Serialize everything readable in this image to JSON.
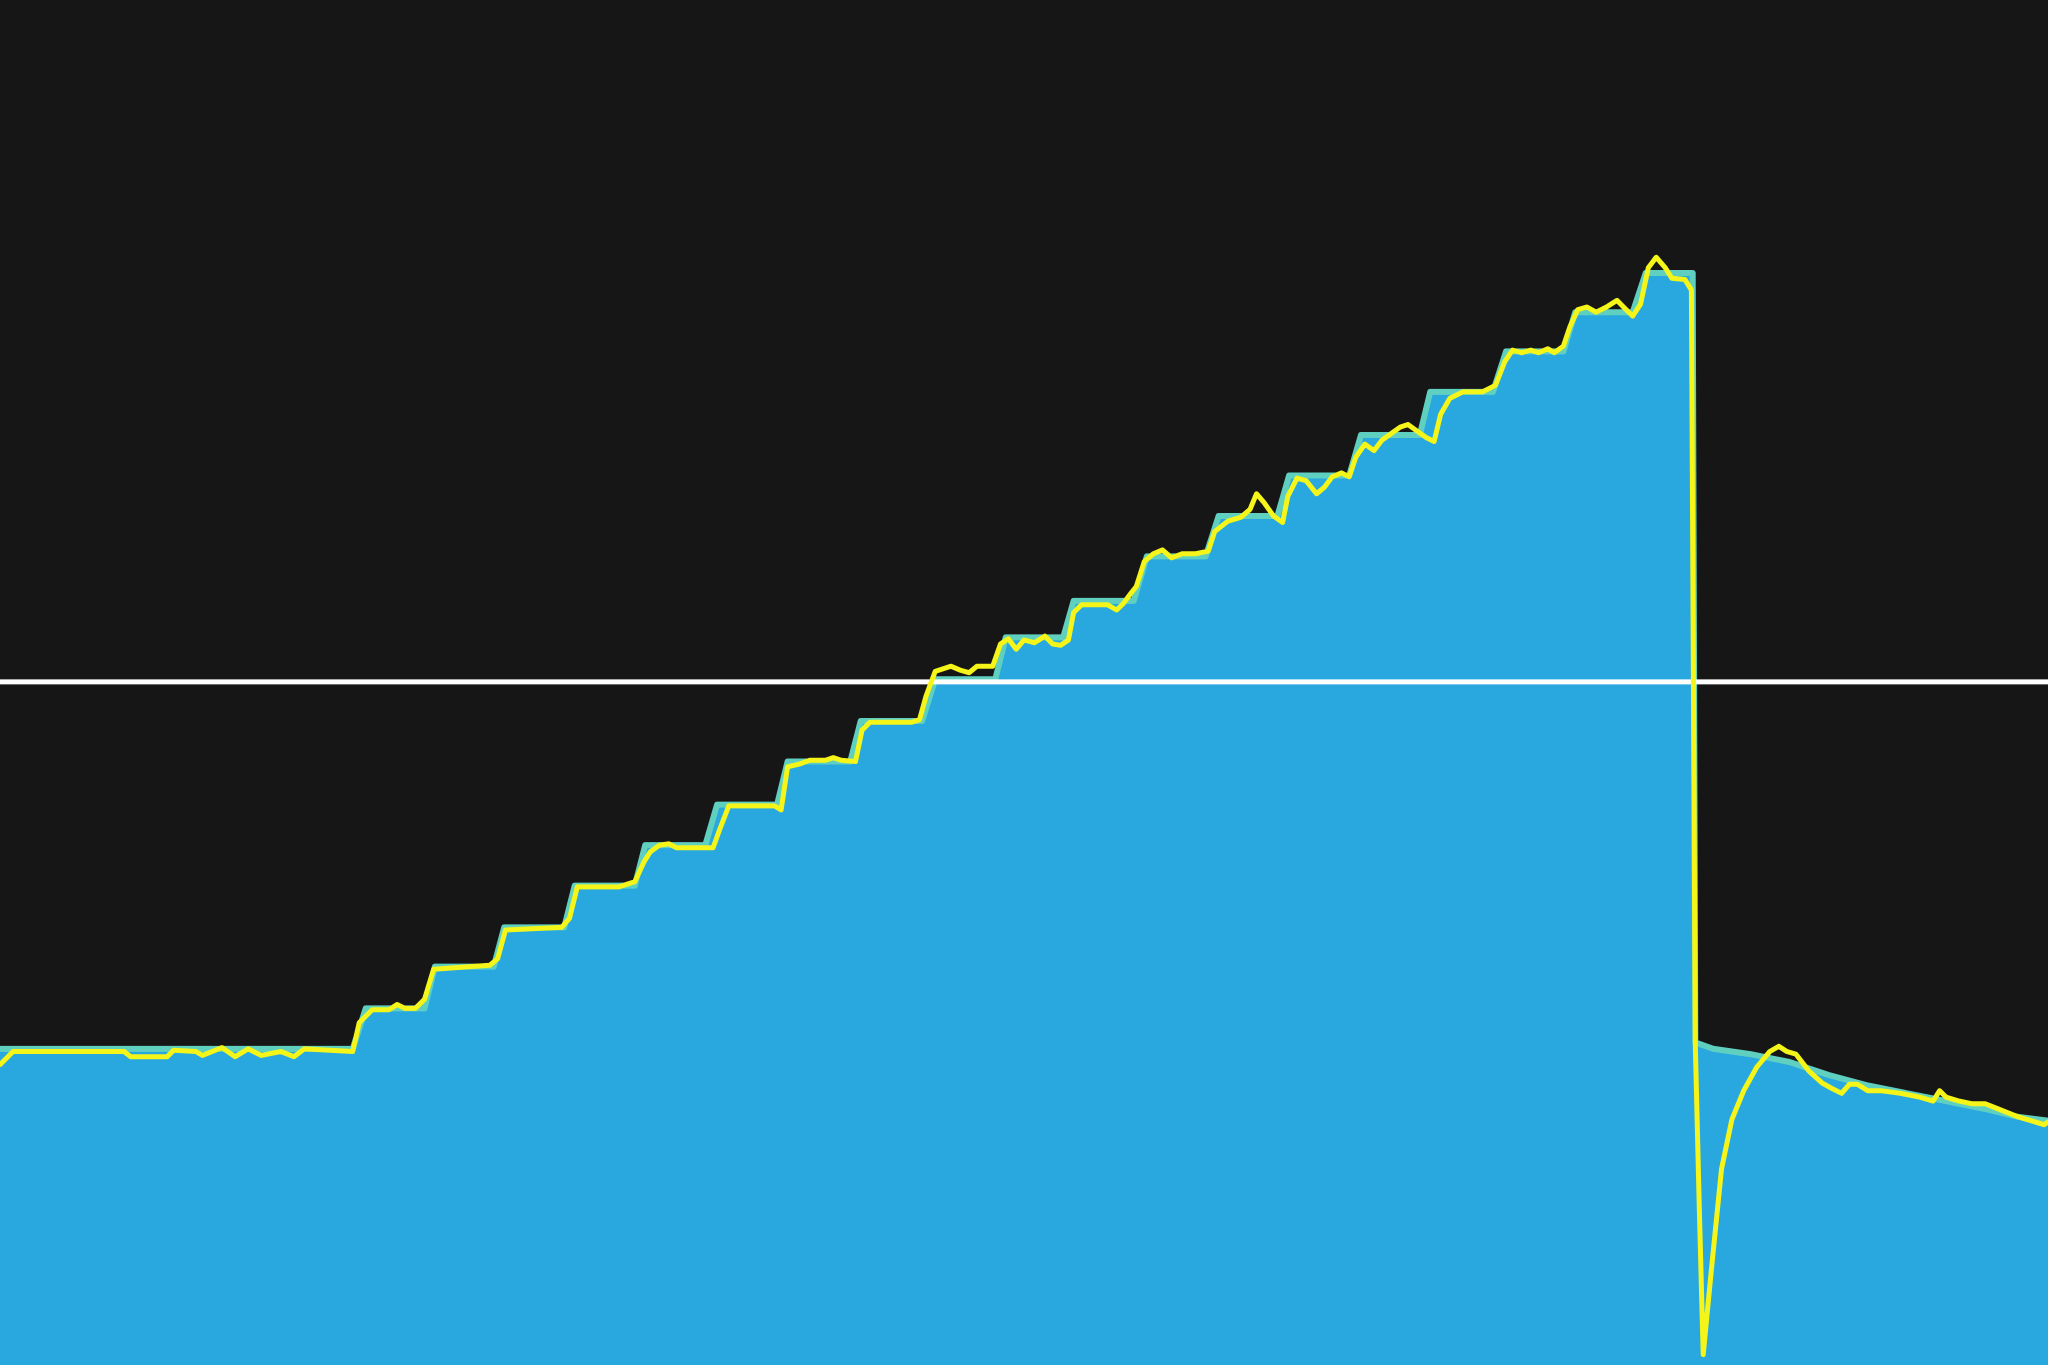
{
  "chart_data": {
    "type": "area",
    "title": "",
    "xlabel": "",
    "ylabel": "",
    "grid": false,
    "legend": "none",
    "xlim": [
      0,
      1568
    ],
    "ylim": [
      0,
      1045
    ],
    "colors": {
      "background": "#161616",
      "area_fill": "#29a8df",
      "area_edge": "#5fd0c0",
      "trace": "#f5f519",
      "threshold": "#ffffff"
    },
    "threshold": 523,
    "area_series": {
      "name": "",
      "points": [
        [
          0,
          242
        ],
        [
          270,
          242
        ],
        [
          280,
          273
        ],
        [
          325,
          273
        ],
        [
          333,
          305
        ],
        [
          378,
          305
        ],
        [
          386,
          335
        ],
        [
          432,
          335
        ],
        [
          440,
          367
        ],
        [
          486,
          367
        ],
        [
          494,
          398
        ],
        [
          540,
          398
        ],
        [
          549,
          429
        ],
        [
          595,
          429
        ],
        [
          603,
          462
        ],
        [
          651,
          462
        ],
        [
          659,
          493
        ],
        [
          706,
          493
        ],
        [
          716,
          525
        ],
        [
          762,
          525
        ],
        [
          770,
          557
        ],
        [
          814,
          557
        ],
        [
          822,
          585
        ],
        [
          868,
          585
        ],
        [
          878,
          619
        ],
        [
          923,
          619
        ],
        [
          933,
          650
        ],
        [
          978,
          650
        ],
        [
          987,
          681
        ],
        [
          1033,
          681
        ],
        [
          1042,
          712
        ],
        [
          1087,
          712
        ],
        [
          1095,
          745
        ],
        [
          1143,
          745
        ],
        [
          1153,
          776
        ],
        [
          1197,
          776
        ],
        [
          1206,
          806
        ],
        [
          1250,
          806
        ],
        [
          1260,
          836
        ],
        [
          1296,
          836
        ],
        [
          1298,
          247
        ],
        [
          1312,
          242
        ],
        [
          1340,
          238
        ],
        [
          1370,
          232
        ],
        [
          1400,
          222
        ],
        [
          1430,
          214
        ],
        [
          1460,
          208
        ],
        [
          1490,
          202
        ],
        [
          1520,
          196
        ],
        [
          1545,
          190
        ],
        [
          1568,
          187
        ]
      ]
    },
    "trace_series": {
      "name": "",
      "points": [
        [
          0,
          230
        ],
        [
          10,
          240
        ],
        [
          95,
          240
        ],
        [
          100,
          236
        ],
        [
          128,
          236
        ],
        [
          133,
          241
        ],
        [
          150,
          240
        ],
        [
          155,
          237
        ],
        [
          170,
          243
        ],
        [
          180,
          236
        ],
        [
          190,
          242
        ],
        [
          200,
          237
        ],
        [
          215,
          240
        ],
        [
          225,
          236
        ],
        [
          233,
          242
        ],
        [
          270,
          240
        ],
        [
          275,
          262
        ],
        [
          285,
          272
        ],
        [
          298,
          272
        ],
        [
          304,
          276
        ],
        [
          310,
          273
        ],
        [
          318,
          273
        ],
        [
          325,
          280
        ],
        [
          332,
          303
        ],
        [
          375,
          306
        ],
        [
          381,
          311
        ],
        [
          387,
          333
        ],
        [
          430,
          335
        ],
        [
          436,
          342
        ],
        [
          442,
          366
        ],
        [
          474,
          366
        ],
        [
          480,
          368
        ],
        [
          486,
          370
        ],
        [
          493,
          385
        ],
        [
          498,
          393
        ],
        [
          505,
          398
        ],
        [
          512,
          399
        ],
        [
          518,
          396
        ],
        [
          546,
          396
        ],
        [
          551,
          410
        ],
        [
          558,
          428
        ],
        [
          593,
          428
        ],
        [
          598,
          425
        ],
        [
          603,
          458
        ],
        [
          612,
          460
        ],
        [
          620,
          463
        ],
        [
          632,
          463
        ],
        [
          638,
          465
        ],
        [
          644,
          463
        ],
        [
          655,
          462
        ],
        [
          660,
          486
        ],
        [
          666,
          492
        ],
        [
          698,
          492
        ],
        [
          704,
          494
        ],
        [
          709,
          512
        ],
        [
          716,
          531
        ],
        [
          728,
          535
        ],
        [
          735,
          532
        ],
        [
          742,
          530
        ],
        [
          748,
          535
        ],
        [
          760,
          535
        ],
        [
          766,
          552
        ],
        [
          772,
          556
        ],
        [
          778,
          548
        ],
        [
          784,
          555
        ],
        [
          792,
          553
        ],
        [
          800,
          558
        ],
        [
          806,
          552
        ],
        [
          812,
          551
        ],
        [
          818,
          555
        ],
        [
          822,
          576
        ],
        [
          828,
          582
        ],
        [
          848,
          582
        ],
        [
          855,
          578
        ],
        [
          860,
          583
        ],
        [
          866,
          591
        ],
        [
          870,
          596
        ],
        [
          876,
          615
        ],
        [
          883,
          621
        ],
        [
          890,
          624
        ],
        [
          897,
          618
        ],
        [
          905,
          621
        ],
        [
          915,
          621
        ],
        [
          925,
          623
        ],
        [
          930,
          638
        ],
        [
          940,
          646
        ],
        [
          950,
          649
        ],
        [
          957,
          655
        ],
        [
          962,
          667
        ],
        [
          968,
          660
        ],
        [
          975,
          650
        ],
        [
          982,
          645
        ],
        [
          986,
          665
        ],
        [
          993,
          679
        ],
        [
          1000,
          677
        ],
        [
          1008,
          667
        ],
        [
          1014,
          672
        ],
        [
          1020,
          680
        ],
        [
          1027,
          683
        ],
        [
          1033,
          680
        ],
        [
          1038,
          695
        ],
        [
          1045,
          705
        ],
        [
          1052,
          700
        ],
        [
          1058,
          708
        ],
        [
          1065,
          713
        ],
        [
          1072,
          718
        ],
        [
          1078,
          720
        ],
        [
          1085,
          715
        ],
        [
          1092,
          710
        ],
        [
          1098,
          707
        ],
        [
          1103,
          728
        ],
        [
          1110,
          740
        ],
        [
          1120,
          745
        ],
        [
          1135,
          745
        ],
        [
          1145,
          750
        ],
        [
          1152,
          768
        ],
        [
          1158,
          777
        ],
        [
          1165,
          775
        ],
        [
          1172,
          777
        ],
        [
          1178,
          775
        ],
        [
          1185,
          778
        ],
        [
          1190,
          775
        ],
        [
          1197,
          780
        ],
        [
          1202,
          795
        ],
        [
          1208,
          808
        ],
        [
          1215,
          810
        ],
        [
          1222,
          806
        ],
        [
          1230,
          810
        ],
        [
          1238,
          815
        ],
        [
          1245,
          808
        ],
        [
          1250,
          803
        ],
        [
          1256,
          812
        ],
        [
          1262,
          840
        ],
        [
          1268,
          848
        ],
        [
          1275,
          840
        ],
        [
          1280,
          832
        ],
        [
          1290,
          831
        ],
        [
          1295,
          823
        ],
        [
          1298,
          245
        ],
        [
          1301,
          120
        ],
        [
          1304,
          8
        ],
        [
          1310,
          70
        ],
        [
          1318,
          150
        ],
        [
          1326,
          188
        ],
        [
          1335,
          210
        ],
        [
          1345,
          228
        ],
        [
          1355,
          240
        ],
        [
          1362,
          244
        ],
        [
          1368,
          240
        ],
        [
          1375,
          238
        ],
        [
          1385,
          225
        ],
        [
          1395,
          216
        ],
        [
          1402,
          212
        ],
        [
          1410,
          208
        ],
        [
          1416,
          215
        ],
        [
          1422,
          215
        ],
        [
          1430,
          210
        ],
        [
          1440,
          210
        ],
        [
          1455,
          208
        ],
        [
          1470,
          205
        ],
        [
          1480,
          202
        ],
        [
          1485,
          210
        ],
        [
          1490,
          205
        ],
        [
          1500,
          202
        ],
        [
          1510,
          200
        ],
        [
          1520,
          200
        ],
        [
          1530,
          196
        ],
        [
          1545,
          190
        ],
        [
          1555,
          187
        ],
        [
          1565,
          184
        ],
        [
          1568,
          186
        ]
      ]
    }
  }
}
